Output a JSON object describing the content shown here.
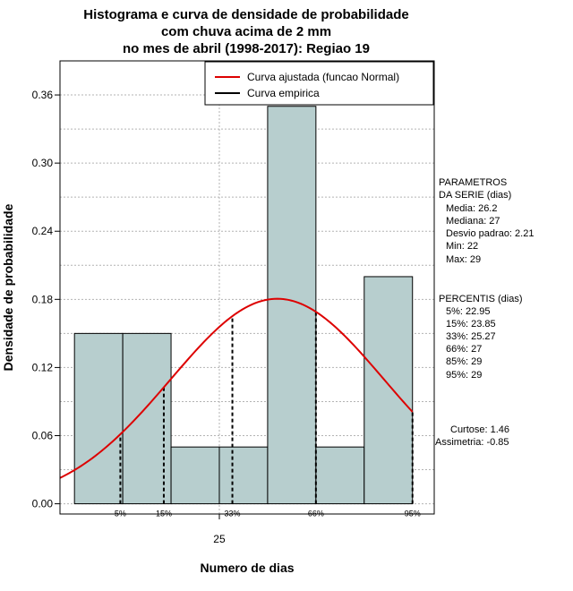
{
  "title_lines": [
    "Histograma e curva de densidade de probabilidade",
    "com chuva acima de 2 mm",
    "no mes de abril (1998-2017): Regiao 19"
  ],
  "chart_data": {
    "type": "bar",
    "xlabel": "Numero de dias",
    "ylabel": "Densidade de probabilidade",
    "xlim": [
      21.7,
      29.45
    ],
    "ylim": [
      -0.009,
      0.39
    ],
    "x_ticks": [
      25
    ],
    "y_ticks": [
      0.0,
      0.06,
      0.12,
      0.18,
      0.24,
      0.3,
      0.36
    ],
    "y_tick_labels": [
      "0.00",
      "0.06",
      "0.12",
      "0.18",
      "0.24",
      "0.30",
      "0.36"
    ],
    "grid": true,
    "legend_position": "top-right",
    "bars": [
      {
        "x0": 22,
        "x1": 23,
        "density": 0.15
      },
      {
        "x0": 23,
        "x1": 24,
        "density": 0.15
      },
      {
        "x0": 24,
        "x1": 25,
        "density": 0.05
      },
      {
        "x0": 25,
        "x1": 26,
        "density": 0.05
      },
      {
        "x0": 26,
        "x1": 27,
        "density": 0.35
      },
      {
        "x0": 27,
        "x1": 28,
        "density": 0.05
      },
      {
        "x0": 28,
        "x1": 29,
        "density": 0.2
      }
    ],
    "series": [
      {
        "name": "Curva ajustada (funcao Normal)",
        "color": "#dd0000",
        "mean": 26.2,
        "sd": 2.21
      },
      {
        "name": "Curva empirica",
        "color": "#000000"
      }
    ],
    "percentile_lines": [
      {
        "label": "5%",
        "x": 22.95
      },
      {
        "label": "15%",
        "x": 23.85
      },
      {
        "label": "33%",
        "x": 25.27
      },
      {
        "label": "66%",
        "x": 27
      },
      {
        "label": "95%",
        "x": 29
      }
    ],
    "bar_color": "#b7cece"
  },
  "parametros": {
    "heading": [
      "PARAMETROS",
      "DA SERIE (dias)"
    ],
    "lines": [
      "Media: 26.2",
      "Mediana: 27",
      "Desvio padrao: 2.21",
      "Min: 22",
      "Max: 29"
    ]
  },
  "percentis": {
    "heading": "PERCENTIS (dias)",
    "lines": [
      "5%: 22.95",
      "15%: 23.85",
      "33%: 25.27",
      "66%: 27",
      "85%: 29",
      "95%: 29"
    ]
  },
  "shape": {
    "lines": [
      "Curtose: 1.46",
      "Assimetria: -0.85"
    ]
  }
}
